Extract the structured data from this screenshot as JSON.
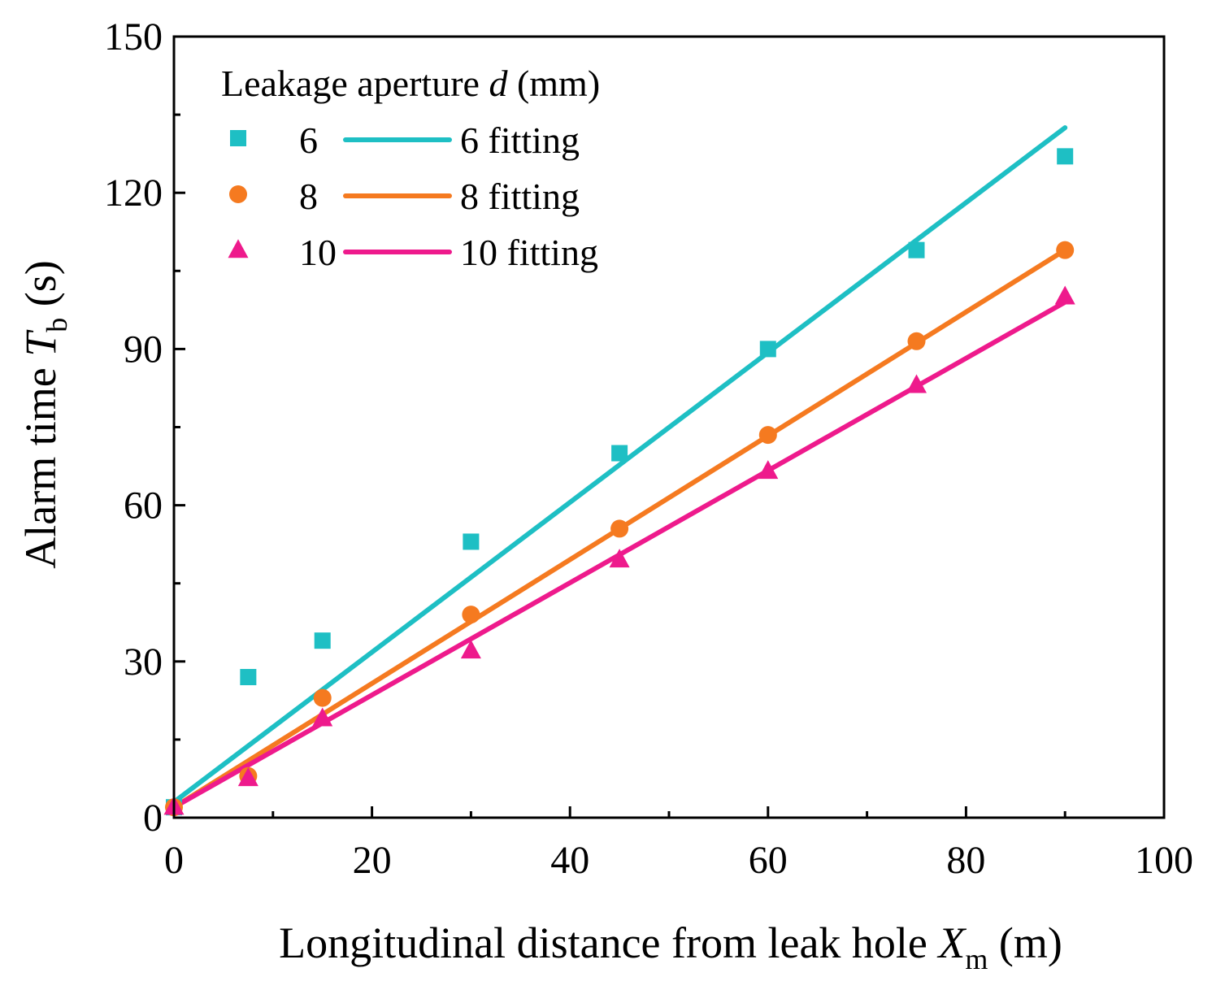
{
  "chart_data": {
    "type": "scatter",
    "xlabel": {
      "main": "Longitudinal distance from leak hole ",
      "var": "X",
      "sub": "m",
      "unit": " (m)"
    },
    "ylabel": {
      "main": "Alarm time ",
      "var": "T",
      "sub": "b",
      "unit": " (s)"
    },
    "xlim": [
      0,
      100
    ],
    "ylim": [
      0,
      150
    ],
    "xticks": [
      0,
      20,
      40,
      60,
      80,
      100
    ],
    "yticks": [
      0,
      30,
      60,
      90,
      120,
      150
    ],
    "legend": {
      "title_main": "Leakage aperture ",
      "title_var": "d",
      "title_unit": " (mm)",
      "placement": "top-left"
    },
    "series": [
      {
        "name": "6",
        "fit_name": "6 fitting",
        "marker": "square",
        "color": "#1ebfc4",
        "x": [
          0,
          7.5,
          15,
          30,
          45,
          60,
          75,
          90
        ],
        "y": [
          2,
          27,
          34,
          53,
          70,
          90,
          109,
          127
        ],
        "fit": {
          "x": [
            0,
            90
          ],
          "y": [
            3,
            132.5
          ]
        }
      },
      {
        "name": "8",
        "fit_name": "8 fitting",
        "marker": "circle",
        "color": "#f57a20",
        "x": [
          0,
          7.5,
          15,
          30,
          45,
          60,
          75,
          90
        ],
        "y": [
          2,
          8,
          23,
          39,
          55.5,
          73.5,
          91.5,
          109
        ],
        "fit": {
          "x": [
            0,
            90
          ],
          "y": [
            2,
            109
          ]
        }
      },
      {
        "name": "10",
        "fit_name": "10 fitting",
        "marker": "triangle",
        "color": "#ee1a8c",
        "x": [
          0,
          7.5,
          15,
          30,
          45,
          60,
          75,
          90
        ],
        "y": [
          2,
          7.5,
          19,
          32,
          49.5,
          66.5,
          83,
          100
        ],
        "fit": {
          "x": [
            0,
            90
          ],
          "y": [
            2,
            99
          ]
        }
      }
    ]
  }
}
